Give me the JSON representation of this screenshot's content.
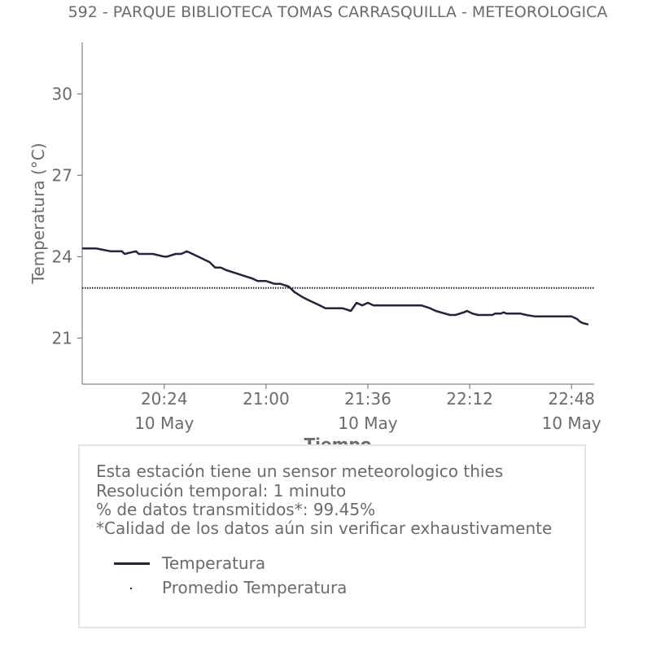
{
  "colors": {
    "series": "#23253f",
    "text": "#6b6b6b",
    "axis": "#6b6b6b",
    "box_border": "#e6e6e6"
  },
  "chart_data": {
    "type": "line",
    "title": "592 - PARQUE BIBLIOTECA TOMAS CARRASQUILLA - METEOROLOGICA",
    "xlabel": "Tiempo",
    "ylabel": "Temperatura (°C)",
    "ylim": [
      19.3,
      31.9
    ],
    "xlim": [
      "19:55",
      "22:56"
    ],
    "yticks": [
      21,
      24,
      27,
      30
    ],
    "xticks": [
      {
        "time": "20:24",
        "date": "10 May"
      },
      {
        "time": "21:00",
        "date": ""
      },
      {
        "time": "21:36",
        "date": "10 May"
      },
      {
        "time": "22:12",
        "date": ""
      },
      {
        "time": "22:48",
        "date": "10 May"
      }
    ],
    "grid": false,
    "series": [
      {
        "name": "Temperatura",
        "style": "solid",
        "x": [
          "19:55",
          "20:00",
          "20:05",
          "20:09",
          "20:10",
          "20:14",
          "20:15",
          "20:19",
          "20:20",
          "20:24",
          "20:25",
          "20:28",
          "20:30",
          "20:32",
          "20:34",
          "20:37",
          "20:40",
          "20:42",
          "20:44",
          "20:46",
          "20:49",
          "20:52",
          "20:55",
          "20:57",
          "21:00",
          "21:03",
          "21:05",
          "21:08",
          "21:10",
          "21:13",
          "21:15",
          "21:17",
          "21:19",
          "21:21",
          "21:23",
          "21:25",
          "21:27",
          "21:30",
          "21:32",
          "21:34",
          "21:36",
          "21:38",
          "21:40",
          "21:42",
          "21:44",
          "21:46",
          "21:48",
          "21:50",
          "21:55",
          "21:58",
          "22:00",
          "22:05",
          "22:07",
          "22:10",
          "22:11",
          "22:13",
          "22:15",
          "22:16",
          "22:18",
          "22:19",
          "22:20",
          "22:21",
          "22:23",
          "22:24",
          "22:25",
          "22:27",
          "22:28",
          "22:30",
          "22:32",
          "22:35",
          "22:40",
          "22:45",
          "22:48",
          "22:50",
          "22:51",
          "22:52",
          "22:54"
        ],
        "y": [
          24.3,
          24.3,
          24.2,
          24.2,
          24.1,
          24.2,
          24.1,
          24.1,
          24.1,
          24.0,
          24.0,
          24.1,
          24.1,
          24.2,
          24.1,
          23.95,
          23.8,
          23.6,
          23.6,
          23.5,
          23.4,
          23.3,
          23.2,
          23.1,
          23.1,
          23.0,
          23.0,
          22.9,
          22.7,
          22.5,
          22.4,
          22.3,
          22.2,
          22.1,
          22.1,
          22.1,
          22.1,
          22.0,
          22.3,
          22.2,
          22.3,
          22.2,
          22.2,
          22.2,
          22.2,
          22.2,
          22.2,
          22.2,
          22.2,
          22.1,
          22.0,
          21.85,
          21.85,
          21.95,
          22.0,
          21.9,
          21.85,
          21.85,
          21.85,
          21.85,
          21.85,
          21.9,
          21.9,
          21.95,
          21.9,
          21.9,
          21.9,
          21.9,
          21.85,
          21.8,
          21.8,
          21.8,
          21.8,
          21.7,
          21.6,
          21.55,
          21.5
        ]
      },
      {
        "name": "Promedio Temperatura",
        "style": "dotted",
        "x": [
          "19:55",
          "22:56"
        ],
        "y": [
          22.85,
          22.85
        ]
      }
    ],
    "legend_position": "bottom-box"
  },
  "info": {
    "lines": [
      "Esta estación tiene un sensor meteorologico thies",
      "Resolución temporal: 1 minuto",
      "% de datos transmitidos*: 99.45%",
      "*Calidad de los datos aún sin verificar exhaustivamente"
    ],
    "legend": [
      {
        "label": "Temperatura"
      },
      {
        "label": "Promedio Temperatura"
      }
    ]
  }
}
